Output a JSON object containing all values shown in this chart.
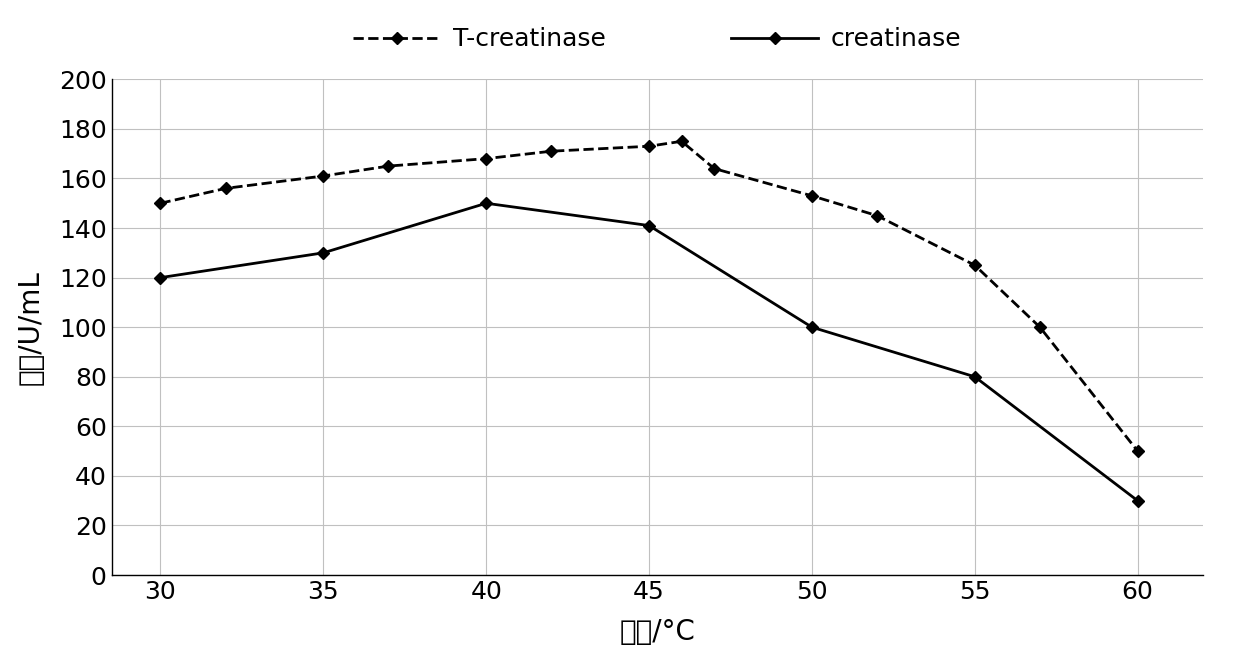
{
  "t_creatinase_x": [
    30,
    32,
    35,
    37,
    40,
    42,
    45,
    46,
    47,
    50,
    52,
    55,
    57,
    60
  ],
  "t_creatinase_y": [
    150,
    156,
    161,
    165,
    168,
    171,
    173,
    175,
    164,
    153,
    145,
    125,
    100,
    50
  ],
  "creatinase_x": [
    30,
    35,
    40,
    45,
    50,
    55,
    60
  ],
  "creatinase_y": [
    120,
    130,
    150,
    141,
    100,
    80,
    30
  ],
  "xlabel": "温度/°C",
  "ylabel": "酶活/U/mL",
  "legend_t": "T-creatinase",
  "legend_c": "creatinase",
  "ylim": [
    0,
    200
  ],
  "xlim": [
    28.5,
    62
  ],
  "xticks": [
    30,
    35,
    40,
    45,
    50,
    55,
    60
  ],
  "yticks": [
    0,
    20,
    40,
    60,
    80,
    100,
    120,
    140,
    160,
    180,
    200
  ],
  "bg_color": "#ffffff",
  "line_color": "#000000",
  "grid_color": "#c0c0c0",
  "tick_fontsize": 18,
  "label_fontsize": 20,
  "legend_fontsize": 18,
  "linewidth": 2.0,
  "markersize": 6
}
